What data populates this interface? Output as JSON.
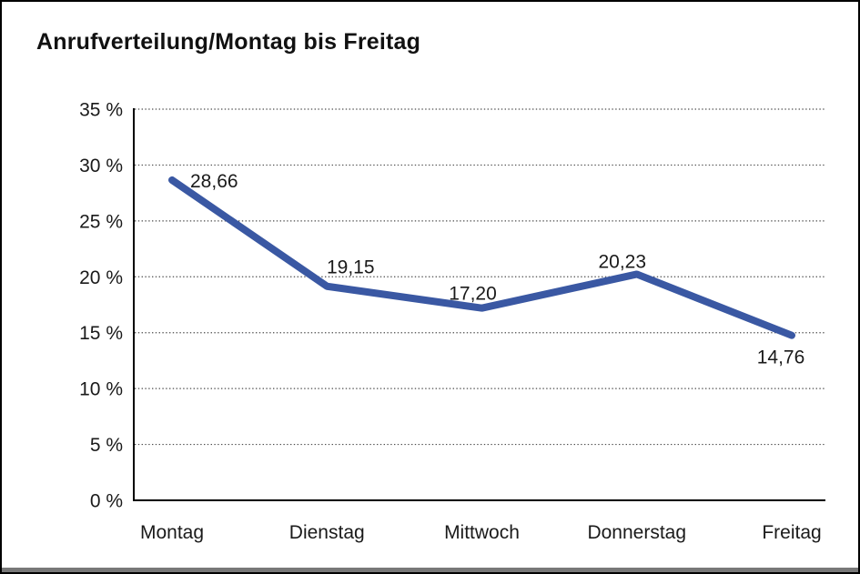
{
  "window": {
    "title": "Anrufverteilung/Montag bis Freitag"
  },
  "chart_data": {
    "type": "line",
    "title": "Anrufverteilung/Montag bis Freitag",
    "categories": [
      "Montag",
      "Dienstag",
      "Mittwoch",
      "Donnerstag",
      "Freitag"
    ],
    "values": [
      28.66,
      19.15,
      17.2,
      20.23,
      14.76
    ],
    "value_labels": [
      "28,66",
      "19,15",
      "17,20",
      "20,23",
      "14,76"
    ],
    "xlabel": "",
    "ylabel": "",
    "ylim": [
      0,
      35
    ],
    "y_tick_step": 5,
    "y_tick_labels": [
      "0 %",
      "5 %",
      "10 %",
      "15 %",
      "20 %",
      "25 %",
      "30 %",
      "35 %"
    ],
    "grid": "horizontal-dotted",
    "legend": "none",
    "colors": {
      "line": "#3A58A3",
      "axis": "#000000",
      "gridline": "#4d4d4d",
      "text": "#1a1a1a",
      "background": "#ffffff",
      "window_edge": "#787878"
    },
    "line_width": 8
  }
}
